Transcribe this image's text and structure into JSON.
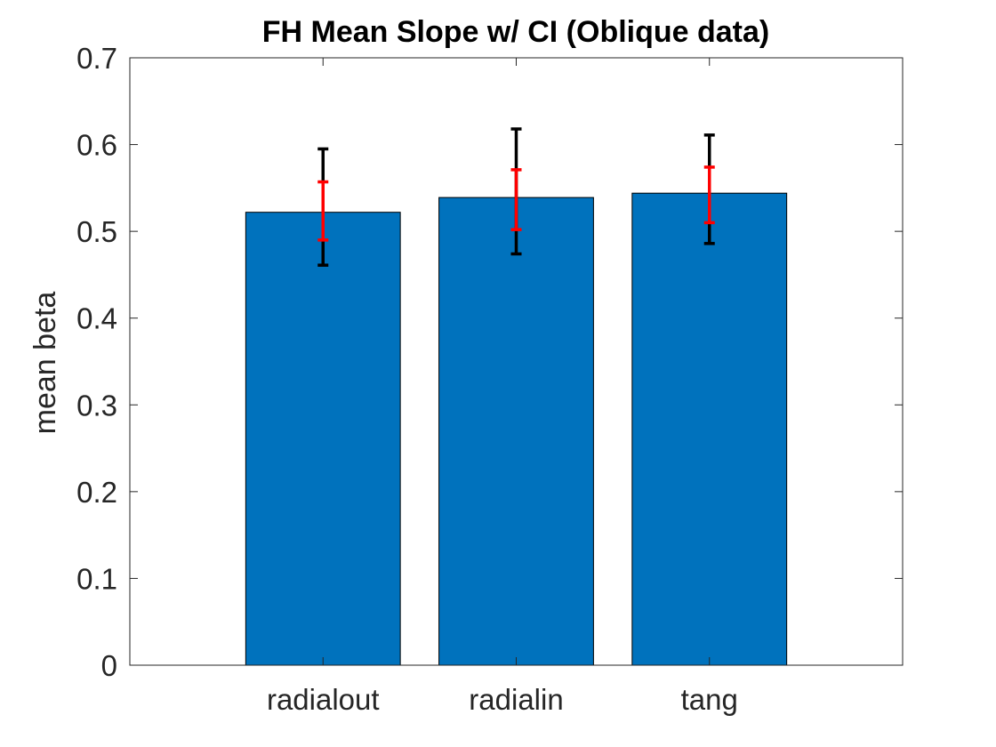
{
  "chart_data": {
    "type": "bar",
    "title": "FH Mean Slope w/ CI (Oblique data)",
    "xlabel": "",
    "ylabel": "mean beta",
    "categories": [
      "radialout",
      "radialin",
      "tang"
    ],
    "values": [
      0.522,
      0.539,
      0.544
    ],
    "error_bars": [
      {
        "name": "outer",
        "lower": [
          0.461,
          0.474,
          0.486
        ],
        "upper": [
          0.595,
          0.618,
          0.611
        ]
      },
      {
        "name": "inner",
        "lower": [
          0.49,
          0.502,
          0.51
        ],
        "upper": [
          0.557,
          0.571,
          0.574
        ]
      }
    ],
    "ylim": [
      0,
      0.7
    ],
    "xlim": [
      0,
      4
    ],
    "yticks": [
      "0",
      "0.1",
      "0.2",
      "0.3",
      "0.4",
      "0.5",
      "0.6",
      "0.7"
    ],
    "grid": false,
    "legend": "none",
    "colors": {
      "bar_fill": "#0072BD",
      "bar_edge": "#000000",
      "outer_error": "#000000",
      "inner_error": "#FF0000",
      "axis": "#262626"
    }
  }
}
